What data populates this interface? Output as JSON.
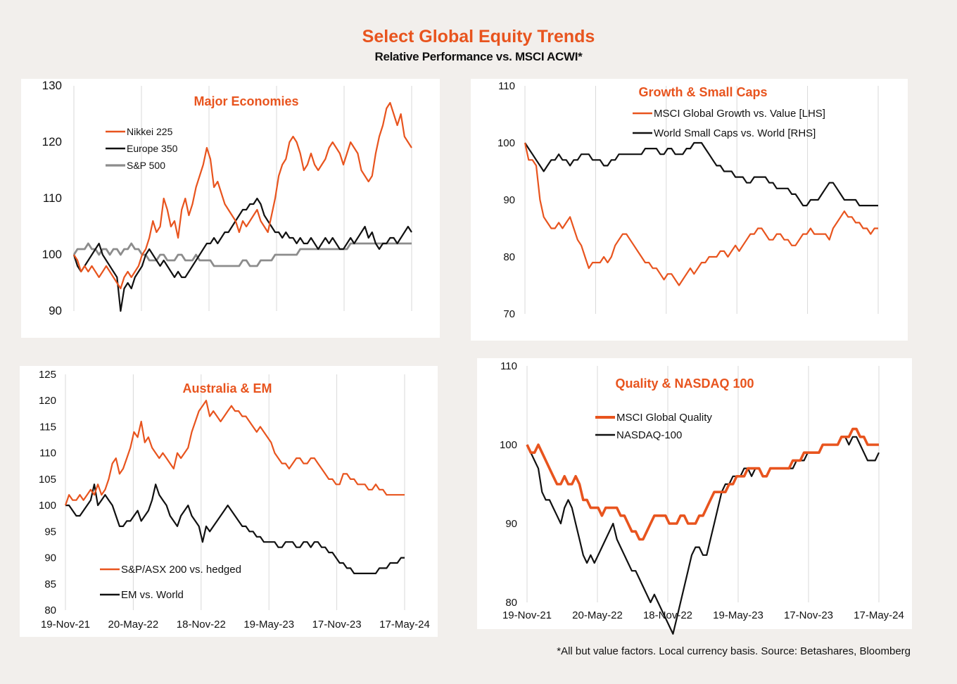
{
  "title": "Select Global Equity Trends",
  "subtitle": "Relative Performance vs. MSCI ACWI*",
  "footnote": "*All but value  factors. Local currency  basis.  Source: Betashares, Bloomberg",
  "x_tick_labels": [
    "19-Nov-21",
    "20-May-22",
    "18-Nov-22",
    "19-May-23",
    "17-Nov-23",
    "17-May-24"
  ],
  "chart_data": [
    {
      "id": "major",
      "type": "line",
      "title": "Major  Economies",
      "ylim": [
        90,
        130
      ],
      "yticks": [
        90,
        100,
        110,
        120,
        130
      ],
      "x_show_tick_labels": false,
      "series": [
        {
          "name": "Nikkei 225",
          "color": "#e8541e",
          "width": 2.2,
          "values": [
            100,
            99,
            97,
            98,
            97,
            98,
            97,
            96,
            97,
            98,
            97,
            96,
            95,
            94,
            96,
            97,
            96,
            97,
            98,
            100,
            101,
            103,
            106,
            104,
            105,
            110,
            108,
            105,
            106,
            103,
            108,
            110,
            107,
            109,
            112,
            114,
            116,
            119,
            117,
            112,
            113,
            111,
            109,
            108,
            107,
            106,
            104,
            106,
            105,
            106,
            107,
            108,
            106,
            105,
            104,
            107,
            110,
            114,
            116,
            117,
            120,
            121,
            120,
            118,
            115,
            116,
            118,
            116,
            115,
            116,
            117,
            119,
            120,
            119,
            118,
            116,
            118,
            120,
            119,
            118,
            115,
            114,
            113,
            114,
            118,
            121,
            123,
            126,
            127,
            125,
            123,
            125,
            121,
            120,
            119
          ]
        },
        {
          "name": "Europe 350",
          "color": "#111111",
          "width": 2.2,
          "values": [
            100,
            98,
            97,
            98,
            99,
            100,
            101,
            102,
            100,
            99,
            98,
            97,
            96,
            90,
            94,
            95,
            94,
            96,
            97,
            98,
            100,
            101,
            100,
            99,
            98,
            99,
            98,
            97,
            96,
            97,
            96,
            96,
            97,
            98,
            99,
            100,
            101,
            102,
            102,
            103,
            102,
            103,
            104,
            104,
            105,
            106,
            107,
            108,
            108,
            109,
            109,
            110,
            109,
            107,
            106,
            105,
            104,
            104,
            103,
            104,
            103,
            103,
            102,
            103,
            102,
            102,
            103,
            102,
            101,
            102,
            103,
            102,
            103,
            102,
            101,
            101,
            102,
            103,
            102,
            103,
            104,
            105,
            103,
            104,
            102,
            101,
            102,
            102,
            103,
            103,
            102,
            103,
            104,
            105,
            104
          ]
        },
        {
          "name": "S&P 500",
          "color": "#8c8c8c",
          "width": 2.8,
          "values": [
            100,
            101,
            101,
            101,
            102,
            101,
            101,
            100,
            101,
            101,
            100,
            101,
            101,
            100,
            101,
            101,
            102,
            101,
            101,
            100,
            100,
            99,
            99,
            99,
            100,
            100,
            99,
            99,
            99,
            100,
            100,
            99,
            99,
            99,
            100,
            99,
            99,
            99,
            99,
            98,
            98,
            98,
            98,
            98,
            98,
            98,
            98,
            99,
            99,
            98,
            98,
            98,
            99,
            99,
            99,
            99,
            100,
            100,
            100,
            100,
            100,
            100,
            100,
            101,
            101,
            101,
            101,
            101,
            101,
            101,
            101,
            101,
            101,
            101,
            101,
            101,
            101,
            102,
            102,
            102,
            102,
            102,
            102,
            102,
            102,
            102,
            102,
            102,
            102,
            102,
            102,
            102,
            102,
            102,
            102
          ]
        }
      ]
    },
    {
      "id": "growth",
      "type": "line",
      "title": "Growth & Small Caps",
      "ylim": [
        70,
        110
      ],
      "yticks": [
        70,
        80,
        90,
        100,
        110
      ],
      "x_show_tick_labels": false,
      "series": [
        {
          "name": "MSCI Global Growth vs. Value [LHS]",
          "color": "#e8541e",
          "width": 2.2,
          "values": [
            100,
            97,
            97,
            96,
            90,
            87,
            86,
            85,
            85,
            86,
            85,
            86,
            87,
            85,
            83,
            82,
            80,
            78,
            79,
            79,
            79,
            80,
            79,
            80,
            82,
            83,
            84,
            84,
            83,
            82,
            81,
            80,
            79,
            79,
            78,
            78,
            77,
            76,
            77,
            77,
            76,
            75,
            76,
            77,
            78,
            77,
            78,
            79,
            79,
            80,
            80,
            80,
            81,
            81,
            80,
            81,
            82,
            81,
            82,
            83,
            84,
            84,
            85,
            85,
            84,
            83,
            83,
            84,
            84,
            83,
            83,
            82,
            82,
            83,
            84,
            84,
            85,
            84,
            84,
            84,
            84,
            83,
            85,
            86,
            87,
            88,
            87,
            87,
            86,
            86,
            85,
            85,
            84,
            85,
            85
          ]
        },
        {
          "name": "World Small Caps vs. World [RHS]",
          "color": "#111111",
          "width": 2.2,
          "values": [
            100,
            99,
            98,
            97,
            96,
            95,
            96,
            97,
            97,
            98,
            97,
            97,
            96,
            97,
            97,
            98,
            98,
            98,
            97,
            97,
            97,
            96,
            96,
            97,
            97,
            98,
            98,
            98,
            98,
            98,
            98,
            98,
            99,
            99,
            99,
            99,
            98,
            98,
            99,
            99,
            98,
            98,
            98,
            99,
            99,
            100,
            100,
            100,
            99,
            98,
            97,
            96,
            96,
            95,
            95,
            95,
            94,
            94,
            94,
            93,
            93,
            94,
            94,
            94,
            94,
            93,
            93,
            92,
            92,
            92,
            92,
            91,
            91,
            90,
            89,
            89,
            90,
            90,
            90,
            91,
            92,
            93,
            93,
            92,
            91,
            90,
            90,
            90,
            90,
            89,
            89,
            89,
            89,
            89,
            89
          ]
        }
      ]
    },
    {
      "id": "australia",
      "type": "line",
      "title": "Australia & EM",
      "ylim": [
        80,
        125
      ],
      "yticks": [
        80,
        85,
        90,
        95,
        100,
        105,
        110,
        115,
        120,
        125
      ],
      "x_show_tick_labels": true,
      "series": [
        {
          "name": "S&P/ASX 200 vs. hedged",
          "color": "#e8541e",
          "width": 2.2,
          "values": [
            100,
            102,
            101,
            101,
            102,
            101,
            102,
            103,
            102,
            104,
            102,
            103,
            105,
            108,
            109,
            106,
            107,
            109,
            111,
            114,
            113,
            116,
            112,
            113,
            111,
            110,
            109,
            110,
            109,
            108,
            107,
            110,
            109,
            110,
            111,
            114,
            116,
            118,
            119,
            120,
            117,
            118,
            117,
            116,
            117,
            118,
            119,
            118,
            118,
            117,
            117,
            116,
            115,
            114,
            115,
            114,
            113,
            112,
            110,
            109,
            108,
            108,
            107,
            108,
            109,
            109,
            108,
            108,
            109,
            109,
            108,
            107,
            106,
            105,
            105,
            104,
            104,
            106,
            106,
            105,
            105,
            104,
            104,
            104,
            103,
            103,
            104,
            103,
            103,
            102,
            102,
            102,
            102,
            102,
            102
          ]
        },
        {
          "name": "EM vs. World",
          "color": "#111111",
          "width": 2.2,
          "values": [
            100,
            100,
            99,
            98,
            98,
            99,
            100,
            101,
            104,
            100,
            101,
            102,
            101,
            100,
            98,
            96,
            96,
            97,
            97,
            98,
            99,
            97,
            98,
            99,
            101,
            104,
            102,
            101,
            100,
            98,
            97,
            96,
            98,
            99,
            100,
            98,
            97,
            96,
            93,
            96,
            95,
            96,
            97,
            98,
            99,
            100,
            99,
            98,
            97,
            96,
            96,
            95,
            95,
            94,
            94,
            93,
            93,
            93,
            93,
            92,
            92,
            93,
            93,
            93,
            92,
            92,
            93,
            93,
            92,
            93,
            93,
            92,
            92,
            91,
            91,
            90,
            89,
            89,
            88,
            88,
            87,
            87,
            87,
            87,
            87,
            87,
            87,
            88,
            88,
            88,
            89,
            89,
            89,
            90,
            90
          ]
        }
      ]
    },
    {
      "id": "quality",
      "type": "line",
      "title": "Quality & NASDAQ 100",
      "ylim": [
        80,
        110
      ],
      "yticks": [
        80,
        90,
        100,
        110
      ],
      "x_show_tick_labels": true,
      "series": [
        {
          "name": "MSCI Global Quality",
          "color": "#e8541e",
          "width": 3.6,
          "values": [
            100,
            99,
            99,
            100,
            99,
            98,
            97,
            96,
            95,
            95,
            96,
            95,
            95,
            96,
            95,
            93,
            93,
            92,
            92,
            92,
            91,
            92,
            92,
            92,
            92,
            91,
            91,
            90,
            89,
            89,
            88,
            88,
            89,
            90,
            91,
            91,
            91,
            91,
            90,
            90,
            90,
            91,
            91,
            90,
            90,
            90,
            91,
            91,
            92,
            93,
            94,
            94,
            94,
            94,
            95,
            95,
            96,
            96,
            96,
            97,
            97,
            97,
            97,
            96,
            96,
            97,
            97,
            97,
            97,
            97,
            97,
            98,
            98,
            98,
            99,
            99,
            99,
            99,
            99,
            100,
            100,
            100,
            100,
            100,
            101,
            101,
            101,
            102,
            102,
            101,
            101,
            100,
            100,
            100,
            100
          ]
        },
        {
          "name": "NASDAQ-100",
          "color": "#111111",
          "width": 2.2,
          "values": [
            100,
            99,
            98,
            97,
            94,
            93,
            93,
            92,
            91,
            90,
            92,
            93,
            92,
            90,
            88,
            86,
            85,
            86,
            85,
            86,
            87,
            88,
            89,
            90,
            88,
            87,
            86,
            85,
            84,
            84,
            83,
            82,
            81,
            80,
            81,
            80,
            79,
            78,
            77,
            76,
            78,
            80,
            82,
            84,
            86,
            87,
            87,
            86,
            86,
            88,
            90,
            92,
            94,
            95,
            95,
            96,
            96,
            96,
            97,
            97,
            96,
            97,
            97,
            96,
            96,
            97,
            97,
            97,
            97,
            97,
            97,
            97,
            98,
            98,
            98,
            99,
            99,
            99,
            99,
            100,
            100,
            100,
            100,
            100,
            101,
            101,
            100,
            101,
            101,
            100,
            99,
            98,
            98,
            98,
            99
          ]
        }
      ]
    }
  ]
}
